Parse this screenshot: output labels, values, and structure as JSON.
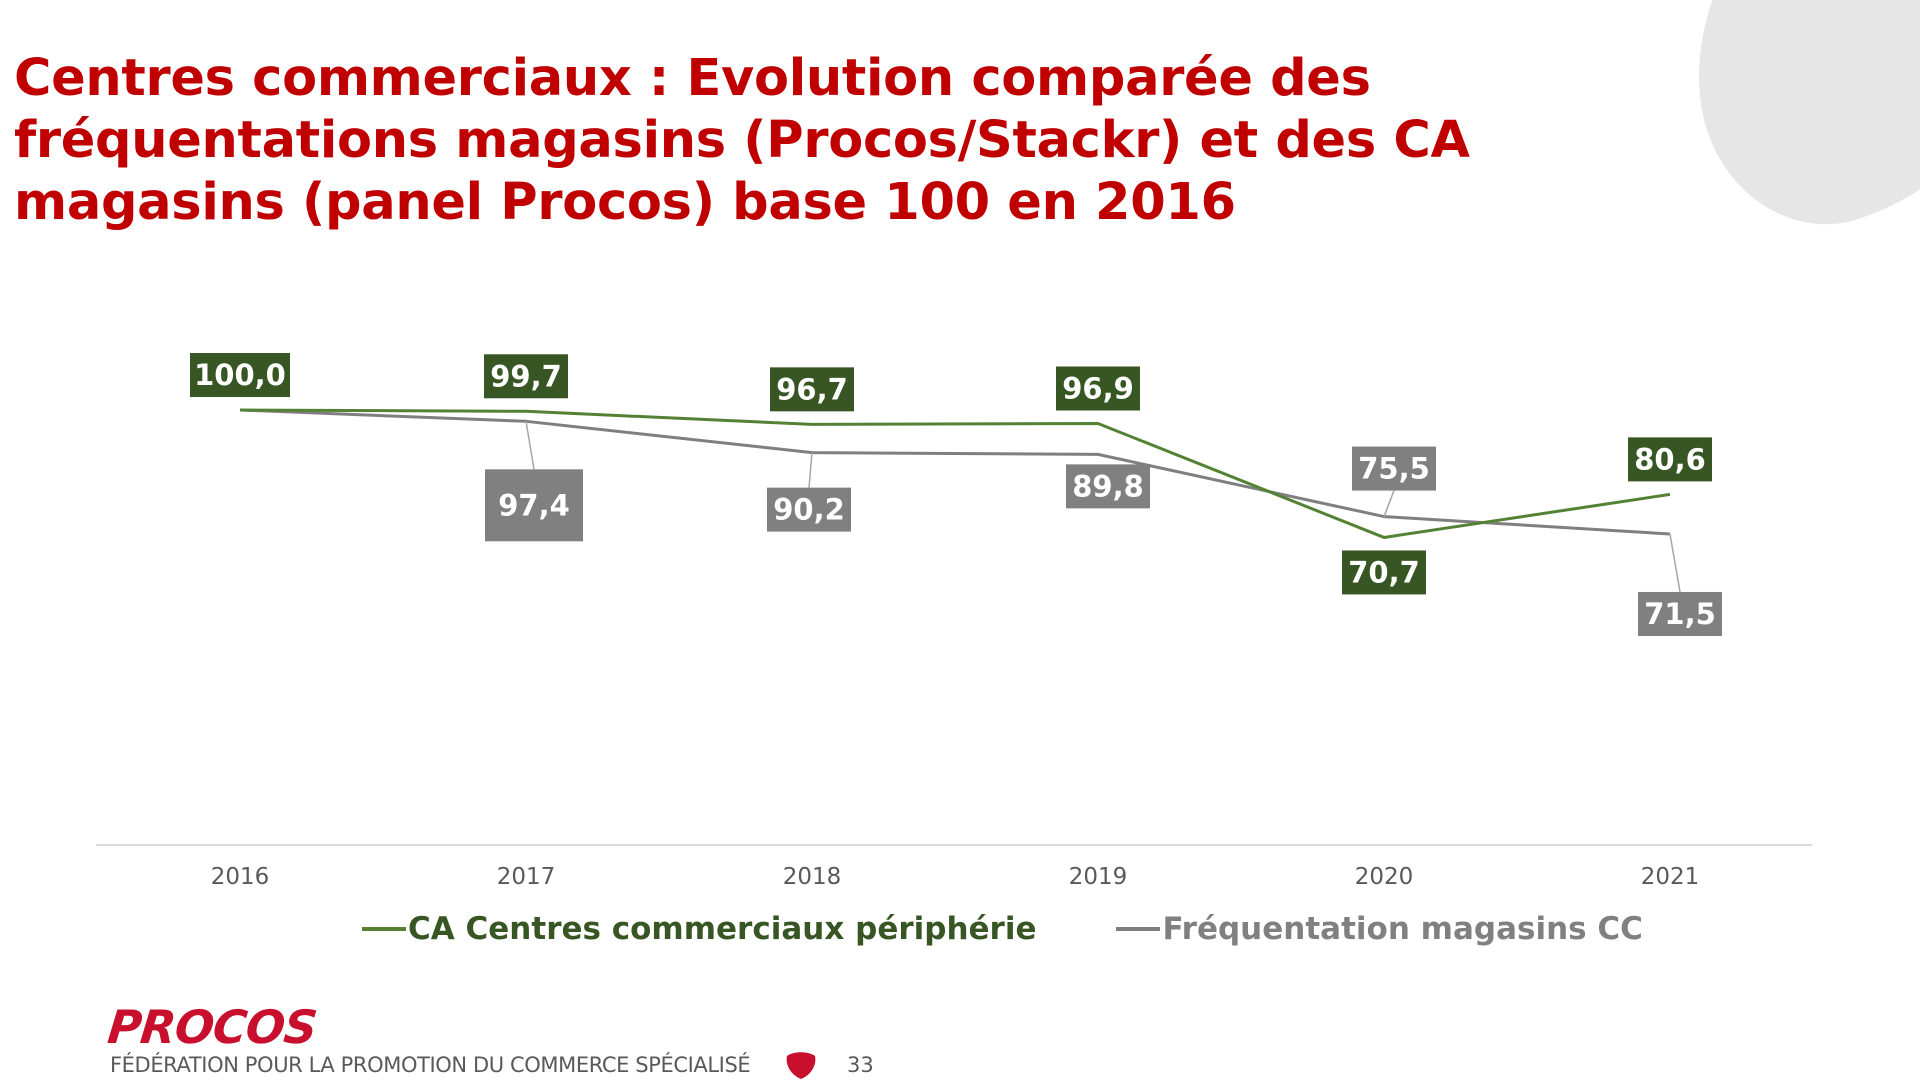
{
  "slide": {
    "title": "Centres commerciaux : Evolution comparée des fréquentations magasins (Procos/Stackr) et des CA magasins (panel Procos) base 100 en 2016",
    "page_number": "33"
  },
  "footer": {
    "logo_text": "PROCOS",
    "tagline": "FÉDÉRATION POUR LA PROMOTION DU COMMERCE SPÉCIALISÉ"
  },
  "chart_data": {
    "type": "line",
    "x": [
      "2016",
      "2017",
      "2018",
      "2019",
      "2020",
      "2021"
    ],
    "series": [
      {
        "name": "CA Centres commerciaux périphérie",
        "color": "#548235",
        "label_color": "#375623",
        "values": [
          100.0,
          99.7,
          96.7,
          96.9,
          70.7,
          80.6
        ],
        "labels": [
          "100,0",
          "99,7",
          "96,7",
          "96,9",
          "70,7",
          "80,6"
        ]
      },
      {
        "name": "Fréquentation magasins CC",
        "color": "#7f7f7f",
        "label_color": "#808080",
        "values": [
          100.0,
          97.4,
          90.2,
          89.8,
          75.5,
          71.5
        ],
        "labels": [
          "",
          "97,4",
          "90,2",
          "89,8",
          "75,5",
          "71,5"
        ]
      }
    ],
    "ylim": [
      0,
      100
    ],
    "grid": false,
    "legend_position": "bottom"
  }
}
